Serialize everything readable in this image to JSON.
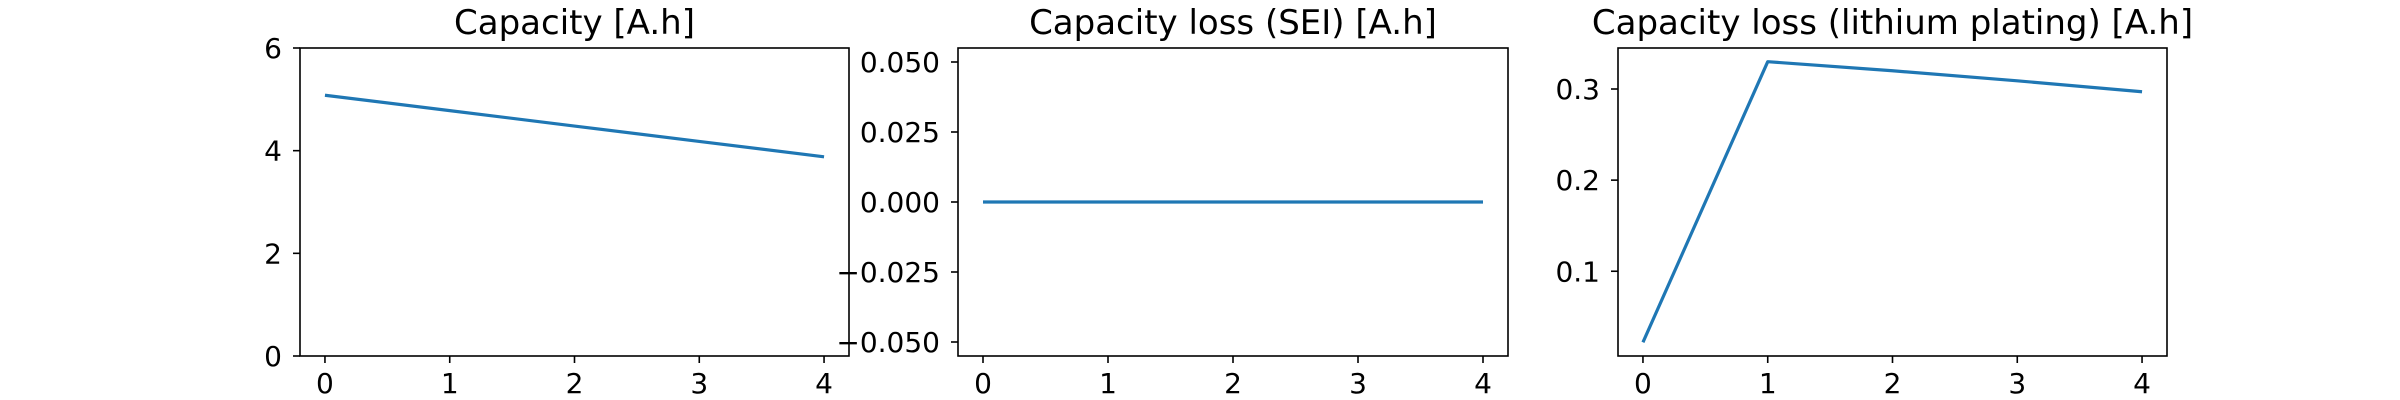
{
  "chart_data": [
    {
      "type": "line",
      "title": "Capacity [A.h]",
      "xlabel": "",
      "ylabel": "",
      "x": [
        0,
        1,
        2,
        3,
        4
      ],
      "series": [
        {
          "values": [
            5.08,
            4.78,
            4.48,
            4.18,
            3.88
          ],
          "color": "#1f77b4"
        }
      ],
      "xlim": [
        -0.2,
        4.2
      ],
      "ylim": [
        0,
        6
      ],
      "xticks": [
        0,
        1,
        2,
        3,
        4
      ],
      "xtick_labels": [
        "0",
        "1",
        "2",
        "3",
        "4"
      ],
      "yticks": [
        0,
        2,
        4,
        6
      ],
      "ytick_labels": [
        "0",
        "2",
        "4",
        "6"
      ],
      "grid": false,
      "legend": "none"
    },
    {
      "type": "line",
      "title": "Capacity loss (SEI) [A.h]",
      "xlabel": "",
      "ylabel": "",
      "x": [
        0,
        1,
        2,
        3,
        4
      ],
      "series": [
        {
          "values": [
            0,
            0,
            0,
            0,
            0
          ],
          "color": "#1f77b4"
        }
      ],
      "xlim": [
        -0.2,
        4.2
      ],
      "ylim": [
        -0.055,
        0.055
      ],
      "xticks": [
        0,
        1,
        2,
        3,
        4
      ],
      "xtick_labels": [
        "0",
        "1",
        "2",
        "3",
        "4"
      ],
      "yticks": [
        -0.05,
        -0.025,
        0,
        0.025,
        0.05
      ],
      "ytick_labels": [
        "−0.050",
        "−0.025",
        "0.000",
        "0.025",
        "0.050"
      ],
      "grid": false,
      "legend": "none"
    },
    {
      "type": "line",
      "title": "Capacity loss (lithium plating) [A.h]",
      "xlabel": "",
      "ylabel": "",
      "x": [
        0,
        1,
        2,
        3,
        4
      ],
      "series": [
        {
          "values": [
            0.022,
            0.33,
            0.32,
            0.309,
            0.297
          ],
          "color": "#1f77b4"
        }
      ],
      "xlim": [
        -0.2,
        4.2
      ],
      "ylim": [
        0.007,
        0.345
      ],
      "xticks": [
        0,
        1,
        2,
        3,
        4
      ],
      "xtick_labels": [
        "0",
        "1",
        "2",
        "3",
        "4"
      ],
      "yticks": [
        0.1,
        0.2,
        0.3
      ],
      "ytick_labels": [
        "0.1",
        "0.2",
        "0.3"
      ],
      "grid": false,
      "legend": "none"
    }
  ]
}
